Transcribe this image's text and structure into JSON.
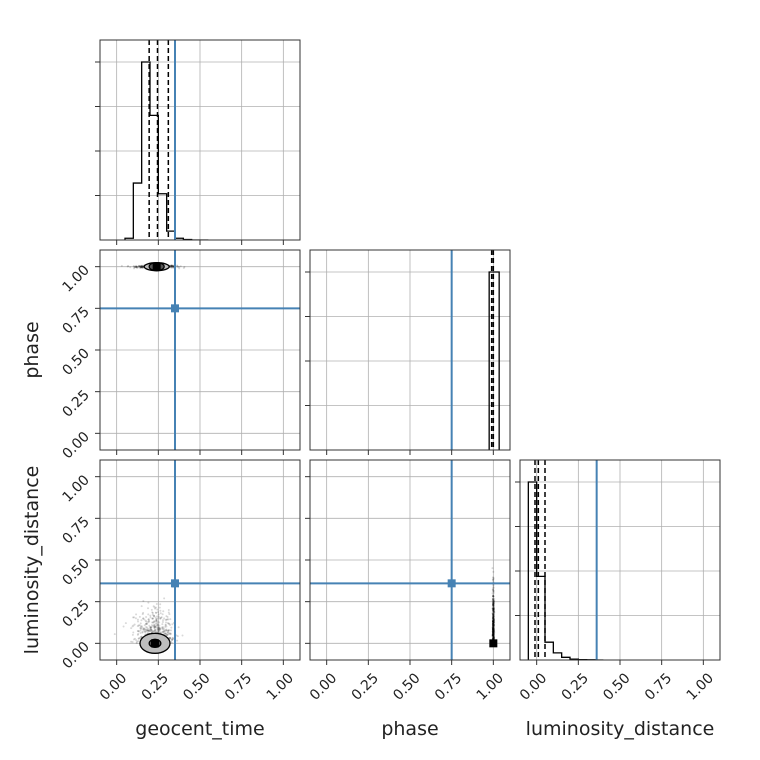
{
  "chart_data": {
    "type": "corner",
    "parameters": [
      "geocent_time",
      "phase",
      "luminosity_distance"
    ],
    "axis_labels": {
      "x": [
        "geocent_time",
        "phase",
        "luminosity_distance"
      ],
      "y": [
        "phase",
        "luminosity_distance"
      ]
    },
    "ticks": [
      0.0,
      0.25,
      0.5,
      0.75,
      1.0
    ],
    "tick_labels": [
      "0.00",
      "0.25",
      "0.50",
      "0.75",
      "1.00"
    ],
    "range": [
      -0.1,
      1.1
    ],
    "grid": true,
    "truths": {
      "geocent_time": 0.35,
      "phase": 0.75,
      "luminosity_distance": 0.36
    },
    "truth_color": "#4682b4",
    "hist_color": "#000000",
    "histograms": {
      "geocent_time": {
        "bin_edges": [
          0.05,
          0.1,
          0.15,
          0.2,
          0.25,
          0.3,
          0.35,
          0.4,
          0.45,
          0.5,
          0.55
        ],
        "counts": [
          0.01,
          0.32,
          1.0,
          0.7,
          0.26,
          0.05,
          0.01,
          0.003,
          0.0,
          0.0
        ],
        "quantiles": [
          0.195,
          0.245,
          0.31
        ]
      },
      "phase": {
        "bin_edges": [
          0.975,
          1.035
        ],
        "counts": [
          1.0
        ],
        "quantiles": [
          0.99,
          1.0
        ]
      },
      "luminosity_distance": {
        "bin_edges": [
          -0.05,
          0.0,
          0.05,
          0.1,
          0.15,
          0.2,
          0.25,
          0.3,
          0.35,
          0.4
        ],
        "counts": [
          1.0,
          0.47,
          0.1,
          0.04,
          0.015,
          0.005,
          0.002,
          0.001,
          0.0
        ],
        "quantiles": [
          -0.01,
          0.01,
          0.05
        ]
      }
    },
    "scatter_2d": {
      "phase_vs_geocent_time": {
        "center": [
          0.24,
          1.0
        ],
        "spread": [
          0.06,
          0.004
        ],
        "contours": [
          [
            0.045,
            0.006
          ],
          [
            0.075,
            0.01
          ]
        ]
      },
      "luminosity_distance_vs_geocent_time": {
        "center": [
          0.23,
          0.0
        ],
        "spread": [
          0.06,
          0.09
        ],
        "contours": [
          [
            0.035,
            0.02
          ],
          [
            0.09,
            0.06
          ]
        ]
      },
      "luminosity_distance_vs_phase": {
        "center": [
          1.0,
          0.0
        ],
        "spread": [
          0.002,
          0.15
        ],
        "contours": []
      }
    }
  }
}
